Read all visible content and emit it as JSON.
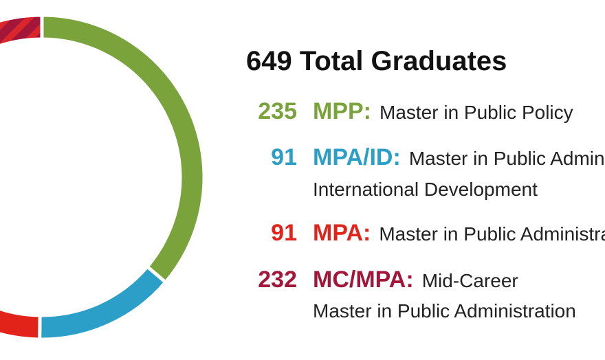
{
  "chart_data": {
    "type": "donut",
    "title": "649 Total Graduates",
    "categories": [
      "MPP:",
      "MPA/ID:",
      "MPA:",
      "MC/MPA:"
    ],
    "descriptions": [
      [
        "Master in Public Policy"
      ],
      [
        "Master in Public Administration in",
        "International Development"
      ],
      [
        "Master in Public Administration"
      ],
      [
        "Mid-Career",
        "Master in Public Administration"
      ]
    ],
    "values": [
      235,
      91,
      91,
      232
    ],
    "colors": [
      "#7aa33c",
      "#2b9fc7",
      "#e2231a",
      "#a3163a"
    ]
  }
}
